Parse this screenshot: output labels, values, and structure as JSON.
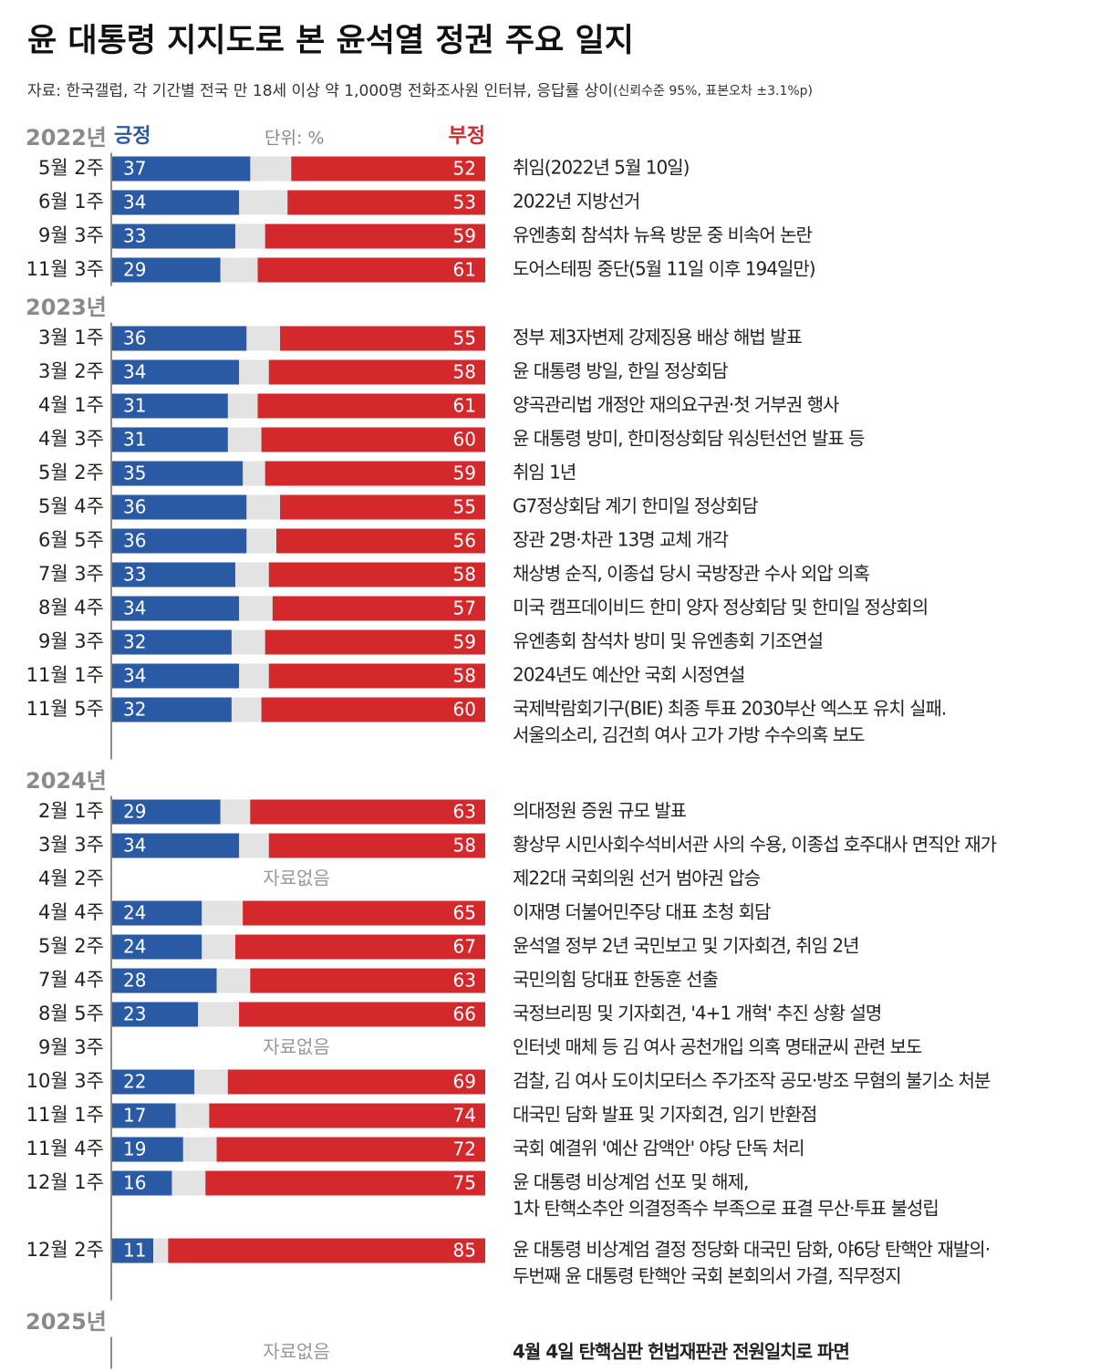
{
  "title": "윤 대통령 지지도로 본 윤석열 정권 주요 일지",
  "subtitle": "자료: 한국갤럽, 각 기간별 전국 만 18세 이상 약 1,000명 전화조사원 인터뷰, 응답률 상이",
  "subtitle_note": "(신뢰수준 95%, 표본오차 ±3.1%p)",
  "unit": "단위: %",
  "no_data_label": "자료없음",
  "chart_data": [
    {
      "type": "bar",
      "stacked": true,
      "title": "2022년",
      "xlim": [
        0,
        100
      ],
      "categories": [
        "5월 2주",
        "6월 1주",
        "9월 3주",
        "11월 3주"
      ],
      "series": [
        {
          "name": "긍정",
          "color": "#2b5aa5",
          "values": [
            37,
            34,
            33,
            29
          ]
        },
        {
          "name": "부정",
          "color": "#d3292c",
          "values": [
            52,
            53,
            59,
            61
          ]
        }
      ],
      "annotations": [
        [
          "취임(2022년 5월 10일)"
        ],
        [
          "2022년 지방선거"
        ],
        [
          "유엔총회 참석차 뉴욕 방문 중 비속어 논란"
        ],
        [
          "도어스테핑 중단(5월 11일 이후 194일만)"
        ]
      ]
    },
    {
      "type": "bar",
      "stacked": true,
      "title": "2023년",
      "xlim": [
        0,
        100
      ],
      "categories": [
        "3월 1주",
        "3월 2주",
        "4월 1주",
        "4월 3주",
        "5월 2주",
        "5월 4주",
        "6월 5주",
        "7월 3주",
        "8월 4주",
        "9월 3주",
        "11월 1주",
        "11월 5주"
      ],
      "series": [
        {
          "name": "긍정",
          "color": "#2b5aa5",
          "values": [
            36,
            34,
            31,
            31,
            35,
            36,
            36,
            33,
            34,
            32,
            34,
            32
          ]
        },
        {
          "name": "부정",
          "color": "#d3292c",
          "values": [
            55,
            58,
            61,
            60,
            59,
            55,
            56,
            58,
            57,
            59,
            58,
            60
          ]
        }
      ],
      "annotations": [
        [
          "정부 제3자변제 강제징용 배상 해법 발표"
        ],
        [
          "윤 대통령 방일, 한일 정상회담"
        ],
        [
          "양곡관리법 개정안 재의요구권·첫 거부권 행사"
        ],
        [
          "윤 대통령 방미, 한미정상회담 워싱턴선언 발표 등"
        ],
        [
          "취임 1년"
        ],
        [
          "G7정상회담 계기 한미일 정상회담"
        ],
        [
          "장관 2명·차관 13명 교체 개각"
        ],
        [
          "채상병 순직, 이종섭 당시 국방장관 수사 외압 의혹"
        ],
        [
          "미국 캠프데이비드 한미 양자 정상회담 및 한미일 정상회의"
        ],
        [
          "유엔총회 참석차 방미 및 유엔총회 기조연설"
        ],
        [
          "2024년도 예산안 국회 시정연설"
        ],
        [
          "국제박람회기구(BIE) 최종 투표 2030부산 엑스포 유치 실패.",
          "서울의소리, 김건희 여사 고가 가방 수수의혹 보도"
        ]
      ]
    },
    {
      "type": "bar",
      "stacked": true,
      "title": "2024년",
      "xlim": [
        0,
        100
      ],
      "categories": [
        "2월 1주",
        "3월 3주",
        "4월 2주",
        "4월 4주",
        "5월 2주",
        "7월 4주",
        "8월 5주",
        "9월 3주",
        "10월 3주",
        "11월 1주",
        "11월 4주",
        "12월 1주",
        "12월 2주"
      ],
      "series": [
        {
          "name": "긍정",
          "color": "#2b5aa5",
          "values": [
            29,
            34,
            null,
            24,
            24,
            28,
            23,
            null,
            22,
            17,
            19,
            16,
            11
          ]
        },
        {
          "name": "부정",
          "color": "#d3292c",
          "values": [
            63,
            58,
            null,
            65,
            67,
            63,
            66,
            null,
            69,
            74,
            72,
            75,
            85
          ]
        }
      ],
      "annotations": [
        [
          "의대정원 증원 규모 발표"
        ],
        [
          "황상무 시민사회수석비서관 사의 수용, 이종섭 호주대사 면직안 재가"
        ],
        [
          "제22대 국회의원 선거 범야권 압승"
        ],
        [
          "이재명 더불어민주당 대표 초청 회담"
        ],
        [
          "윤석열 정부 2년 국민보고 및 기자회견, 취임 2년"
        ],
        [
          "국민의힘 당대표 한동훈 선출"
        ],
        [
          "국정브리핑 및 기자회견, '4+1 개혁' 추진 상황 설명"
        ],
        [
          "인터넷 매체 등 김 여사 공천개입 의혹 명태균씨 관련 보도"
        ],
        [
          "검찰, 김 여사 도이치모터스 주가조작 공모·방조 무혐의 불기소 처분"
        ],
        [
          "대국민 담화 발표 및 기자회견, 임기 반환점"
        ],
        [
          "국회 예결위 '예산 감액안' 야당 단독 처리"
        ],
        [
          "윤 대통령 비상계엄 선포 및 해제,",
          "1차 탄핵소추안 의결정족수 부족으로 표결 무산·투표 불성립"
        ],
        [
          "윤 대통령 비상계엄 결정 정당화 대국민 담화, 야6당 탄핵안 재발의·",
          "두번째 윤 대통령 탄핵안 국회 본회의서 가결, 직무정지"
        ]
      ]
    },
    {
      "type": "bar",
      "stacked": true,
      "title": "2025년",
      "xlim": [
        0,
        100
      ],
      "categories": [
        null
      ],
      "series": [
        {
          "name": "긍정",
          "color": "#2b5aa5",
          "values": [
            null
          ]
        },
        {
          "name": "부정",
          "color": "#d3292c",
          "values": [
            null
          ]
        }
      ],
      "annotations": [
        [
          "4월 4일 탄핵심판 헌법재판관 전원일치로 파면"
        ]
      ]
    }
  ]
}
